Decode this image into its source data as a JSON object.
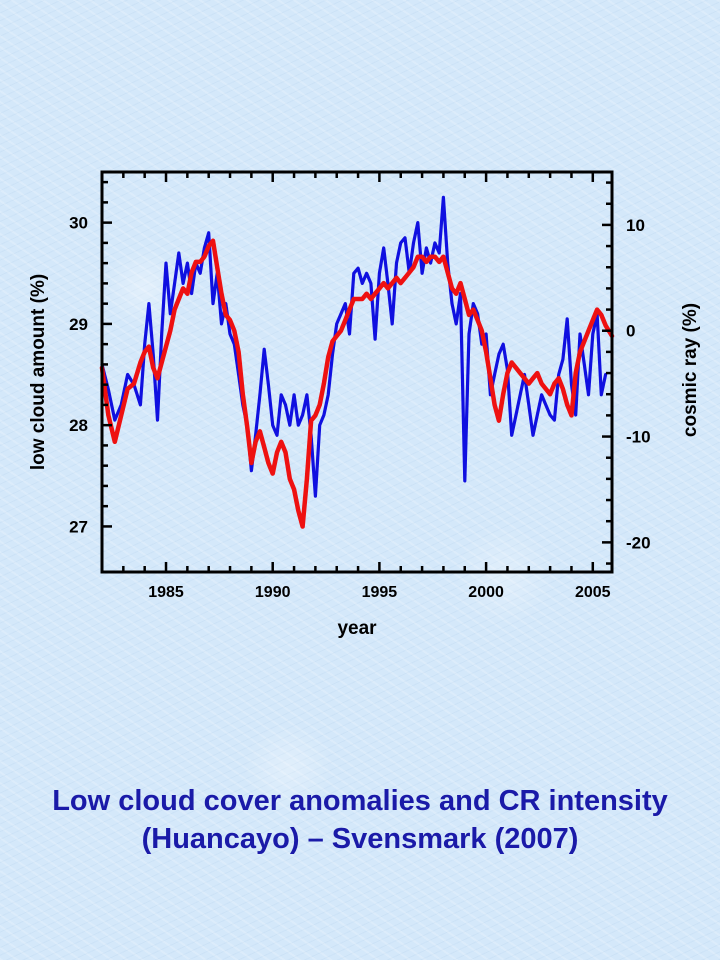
{
  "caption": {
    "line1": "Low cloud cover anomalies and CR intensity",
    "line2": "(Huancayo) – Svensmark (2007)"
  },
  "colors": {
    "cloud_series": "#1010e0",
    "cosmic_series": "#ee1111",
    "caption_text": "#1a1aa8",
    "frame": "#000000"
  },
  "chart_data": {
    "type": "line",
    "title": "",
    "xlabel": "year",
    "ylabel_left": "low cloud amount (%)",
    "ylabel_right": "cosmic ray (%)",
    "xlim": [
      1982,
      2005.9
    ],
    "ylim_left": [
      26.55,
      30.5
    ],
    "ylim_right": [
      -22.8,
      15
    ],
    "x_ticks": [
      1985,
      1990,
      1995,
      2000,
      2005
    ],
    "x_tick_labels": [
      "1985",
      "1990",
      "1995",
      "2000",
      "2005"
    ],
    "y_left_ticks": [
      27,
      28,
      29,
      30
    ],
    "y_left_tick_labels": [
      "27",
      "28",
      "29",
      "30"
    ],
    "y_right_ticks": [
      -20,
      -10,
      0,
      10
    ],
    "y_right_tick_labels": [
      "-20",
      "-10",
      "0",
      "10"
    ],
    "grid": false,
    "legend": "none",
    "series": [
      {
        "axis": "left",
        "color": "#1010e0",
        "x": [
          1982.0,
          1982.3,
          1982.6,
          1982.9,
          1983.2,
          1983.5,
          1983.8,
          1984.0,
          1984.2,
          1984.4,
          1984.6,
          1984.8,
          1985.0,
          1985.2,
          1985.4,
          1985.6,
          1985.8,
          1986.0,
          1986.2,
          1986.4,
          1986.6,
          1986.8,
          1987.0,
          1987.2,
          1987.4,
          1987.6,
          1987.8,
          1988.0,
          1988.2,
          1988.4,
          1988.6,
          1988.8,
          1989.0,
          1989.2,
          1989.4,
          1989.6,
          1989.8,
          1990.0,
          1990.2,
          1990.4,
          1990.6,
          1990.8,
          1991.0,
          1991.2,
          1991.4,
          1991.6,
          1991.8,
          1992.0,
          1992.2,
          1992.4,
          1992.6,
          1992.8,
          1993.0,
          1993.2,
          1993.4,
          1993.6,
          1993.8,
          1994.0,
          1994.2,
          1994.4,
          1994.6,
          1994.8,
          1995.0,
          1995.2,
          1995.4,
          1995.6,
          1995.8,
          1996.0,
          1996.2,
          1996.4,
          1996.6,
          1996.8,
          1997.0,
          1997.2,
          1997.4,
          1997.6,
          1997.8,
          1998.0,
          1998.2,
          1998.4,
          1998.6,
          1998.8,
          1999.0,
          1999.2,
          1999.4,
          1999.6,
          1999.8,
          2000.0,
          2000.2,
          2000.4,
          2000.6,
          2000.8,
          2001.0,
          2001.2,
          2001.4,
          2001.6,
          2001.8,
          2002.0,
          2002.2,
          2002.4,
          2002.6,
          2002.8,
          2003.0,
          2003.2,
          2003.4,
          2003.6,
          2003.8,
          2004.0,
          2004.2,
          2004.4,
          2004.6,
          2004.8,
          2005.0,
          2005.2,
          2005.4,
          2005.6
        ],
        "y": [
          28.6,
          28.35,
          28.05,
          28.2,
          28.5,
          28.4,
          28.2,
          28.8,
          29.2,
          28.7,
          28.05,
          28.9,
          29.6,
          29.1,
          29.4,
          29.7,
          29.4,
          29.6,
          29.3,
          29.6,
          29.5,
          29.75,
          29.9,
          29.2,
          29.5,
          29.0,
          29.2,
          28.9,
          28.8,
          28.5,
          28.2,
          28.0,
          27.55,
          27.9,
          28.3,
          28.75,
          28.4,
          28.0,
          27.9,
          28.3,
          28.2,
          28.0,
          28.3,
          28.0,
          28.1,
          28.3,
          27.9,
          27.3,
          28.0,
          28.1,
          28.3,
          28.7,
          29.0,
          29.1,
          29.2,
          28.9,
          29.5,
          29.55,
          29.4,
          29.5,
          29.4,
          28.85,
          29.5,
          29.75,
          29.4,
          29.0,
          29.6,
          29.8,
          29.85,
          29.5,
          29.8,
          30.0,
          29.5,
          29.75,
          29.6,
          29.8,
          29.7,
          30.25,
          29.6,
          29.2,
          29.0,
          29.3,
          27.45,
          28.9,
          29.2,
          29.1,
          28.8,
          28.9,
          28.3,
          28.5,
          28.7,
          28.8,
          28.55,
          27.9,
          28.1,
          28.3,
          28.5,
          28.2,
          27.9,
          28.1,
          28.3,
          28.2,
          28.1,
          28.05,
          28.5,
          28.65,
          29.05,
          28.4,
          28.1,
          28.9,
          28.6,
          28.3,
          28.9,
          29.1,
          28.3,
          28.5
        ],
        "name": ""
      },
      {
        "axis": "right",
        "color": "#ee1111",
        "x": [
          1982.0,
          1982.3,
          1982.6,
          1982.9,
          1983.2,
          1983.5,
          1983.8,
          1984.0,
          1984.2,
          1984.4,
          1984.6,
          1984.8,
          1985.0,
          1985.2,
          1985.4,
          1985.6,
          1985.8,
          1986.0,
          1986.2,
          1986.4,
          1986.6,
          1986.8,
          1987.0,
          1987.2,
          1987.4,
          1987.6,
          1987.8,
          1988.0,
          1988.2,
          1988.4,
          1988.6,
          1988.8,
          1989.0,
          1989.2,
          1989.4,
          1989.6,
          1989.8,
          1990.0,
          1990.2,
          1990.4,
          1990.6,
          1990.8,
          1991.0,
          1991.2,
          1991.4,
          1991.6,
          1991.8,
          1992.0,
          1992.2,
          1992.4,
          1992.6,
          1992.8,
          1993.0,
          1993.2,
          1993.4,
          1993.6,
          1993.8,
          1994.0,
          1994.2,
          1994.4,
          1994.6,
          1994.8,
          1995.0,
          1995.2,
          1995.4,
          1995.6,
          1995.8,
          1996.0,
          1996.2,
          1996.4,
          1996.6,
          1996.8,
          1997.0,
          1997.2,
          1997.4,
          1997.6,
          1997.8,
          1998.0,
          1998.2,
          1998.4,
          1998.6,
          1998.8,
          1999.0,
          1999.2,
          1999.4,
          1999.6,
          1999.8,
          2000.0,
          2000.2,
          2000.4,
          2000.6,
          2000.8,
          2001.0,
          2001.2,
          2001.4,
          2001.6,
          2001.8,
          2002.0,
          2002.2,
          2002.4,
          2002.6,
          2002.8,
          2003.0,
          2003.2,
          2003.4,
          2003.6,
          2003.8,
          2004.0,
          2004.2,
          2004.4,
          2004.6,
          2004.8,
          2005.0,
          2005.2,
          2005.4,
          2005.6,
          2005.9
        ],
        "y": [
          -3.5,
          -8.0,
          -10.5,
          -8.0,
          -5.5,
          -5.0,
          -3.0,
          -2.0,
          -1.5,
          -3.5,
          -4.5,
          -3.0,
          -1.5,
          0.0,
          2.0,
          3.0,
          4.0,
          3.5,
          5.5,
          6.5,
          6.5,
          7.0,
          8.0,
          8.5,
          6.0,
          3.5,
          1.5,
          1.0,
          0.0,
          -2.0,
          -6.0,
          -9.0,
          -12.5,
          -10.5,
          -9.5,
          -11.0,
          -12.5,
          -13.5,
          -11.5,
          -10.5,
          -11.5,
          -14.0,
          -15.0,
          -17.0,
          -18.5,
          -14.0,
          -8.5,
          -8.0,
          -7.0,
          -5.0,
          -2.5,
          -1.0,
          -0.5,
          0.0,
          1.0,
          2.0,
          3.0,
          3.0,
          3.0,
          3.5,
          3.0,
          3.5,
          4.0,
          4.5,
          4.0,
          4.5,
          5.0,
          4.5,
          5.0,
          5.5,
          6.0,
          7.0,
          7.0,
          6.5,
          7.0,
          7.0,
          6.5,
          7.0,
          5.5,
          4.0,
          3.5,
          4.5,
          3.0,
          1.5,
          2.0,
          1.0,
          0.0,
          -2.0,
          -4.5,
          -7.0,
          -8.5,
          -6.0,
          -4.0,
          -3.0,
          -3.5,
          -4.0,
          -4.5,
          -5.0,
          -4.5,
          -4.0,
          -5.0,
          -5.5,
          -6.0,
          -5.0,
          -4.5,
          -5.5,
          -7.0,
          -8.0,
          -4.0,
          -2.0,
          -1.0,
          0.0,
          1.0,
          2.0,
          1.5,
          0.5,
          -0.5
        ]
      }
    ]
  }
}
